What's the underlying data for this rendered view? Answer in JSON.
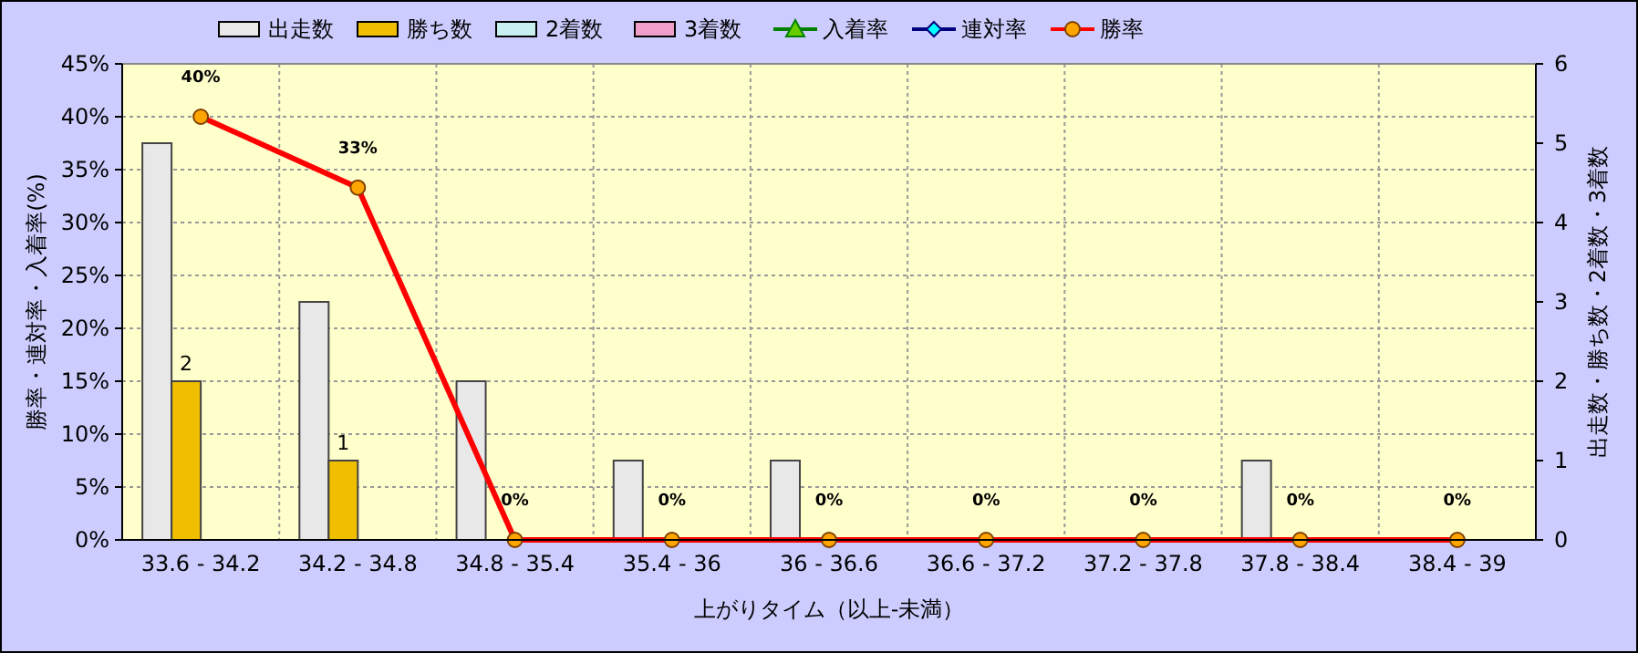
{
  "chart_data": {
    "type": "bar",
    "xlabel": "上がりタイム（以上-未満）",
    "ylabel": "勝率・連対率・入着率(%)",
    "y2label": "出走数・勝ち数・2着数・3着数",
    "categories": [
      "33.6 - 34.2",
      "34.2 - 34.8",
      "34.8 - 35.4",
      "35.4 - 36",
      "36 - 36.6",
      "36.6 - 37.2",
      "37.2 - 37.8",
      "37.8 - 38.4",
      "38.4 - 39"
    ],
    "series": [
      {
        "name": "出走数",
        "axis": "y2",
        "color": "#e8e8e8",
        "values": [
          5,
          3,
          2,
          1,
          1,
          0,
          0,
          1,
          0
        ]
      },
      {
        "name": "勝ち数",
        "axis": "y2",
        "color": "#f0c000",
        "values": [
          2,
          1,
          0,
          0,
          0,
          0,
          0,
          0,
          0
        ],
        "value_labels": [
          "2",
          "1",
          null,
          null,
          null,
          null,
          null,
          null,
          null
        ]
      },
      {
        "name": "2着数",
        "axis": "y2",
        "color": "#c8f0f0",
        "values": [
          0,
          0,
          0,
          0,
          0,
          0,
          0,
          0,
          0
        ]
      },
      {
        "name": "3着数",
        "axis": "y2",
        "color": "#f0a0c8",
        "values": [
          0,
          0,
          0,
          0,
          0,
          0,
          0,
          0,
          0
        ]
      },
      {
        "name": "入着率",
        "type": "line",
        "color": "#008000",
        "marker": "triangle",
        "values": [
          null,
          null,
          null,
          null,
          null,
          null,
          null,
          null,
          null
        ]
      },
      {
        "name": "連対率",
        "type": "line",
        "color": "#000080",
        "marker": "diamond",
        "values": [
          null,
          null,
          null,
          null,
          null,
          null,
          null,
          null,
          null
        ]
      },
      {
        "name": "勝率",
        "type": "line",
        "color": "#ff0000",
        "marker": "circle",
        "values": [
          40,
          33.3,
          0,
          0,
          0,
          0,
          0,
          0,
          0
        ],
        "value_labels": [
          "40%",
          "33%",
          "0%",
          "0%",
          "0%",
          "0%",
          "0%",
          "0%",
          "0%"
        ]
      }
    ],
    "ylim": [
      0,
      45
    ],
    "yticks": [
      {
        "value": 0,
        "label": "0%"
      },
      {
        "value": 5,
        "label": "5%"
      },
      {
        "value": 10,
        "label": "10%"
      },
      {
        "value": 15,
        "label": "15%"
      },
      {
        "value": 20,
        "label": "20%"
      },
      {
        "value": 25,
        "label": "25%"
      },
      {
        "value": 30,
        "label": "30%"
      },
      {
        "value": 35,
        "label": "35%"
      },
      {
        "value": 40,
        "label": "40%"
      },
      {
        "value": 45,
        "label": "45%"
      }
    ],
    "y2lim": [
      0,
      6
    ],
    "y2ticks": [
      0,
      1,
      2,
      3,
      4,
      5,
      6
    ],
    "grid": true,
    "legend": "top"
  }
}
